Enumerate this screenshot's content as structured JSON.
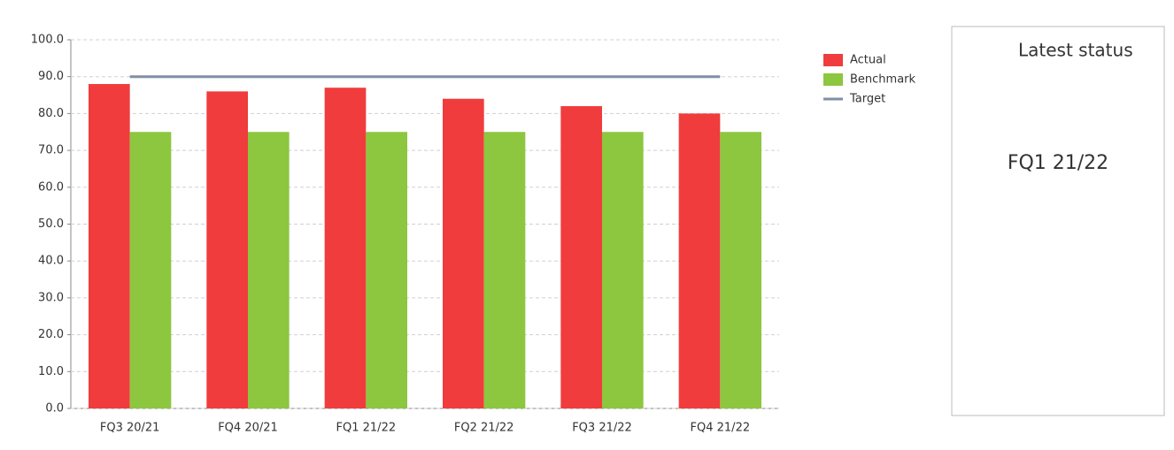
{
  "chart_data": {
    "type": "bar",
    "categories": [
      "FQ3 20/21",
      "FQ4 20/21",
      "FQ1 21/22",
      "FQ2 21/22",
      "FQ3 21/22",
      "FQ4 21/22"
    ],
    "series": [
      {
        "name": "Actual",
        "type": "bar",
        "color": "#f03c3c",
        "values": [
          88,
          86,
          87,
          84,
          82,
          80
        ]
      },
      {
        "name": "Benchmark",
        "type": "bar",
        "color": "#8dc63f",
        "values": [
          75,
          75,
          75,
          75,
          75,
          75
        ]
      },
      {
        "name": "Target",
        "type": "line",
        "color": "#7f8fa6",
        "values": [
          90,
          90,
          90,
          90,
          90,
          90
        ]
      }
    ],
    "ylim": [
      0,
      100
    ],
    "yticks": [
      {
        "value": 0,
        "label": "0.0"
      },
      {
        "value": 10,
        "label": "10.0"
      },
      {
        "value": 20,
        "label": "20.0"
      },
      {
        "value": 30,
        "label": "30.0"
      },
      {
        "value": 40,
        "label": "40.0"
      },
      {
        "value": 50,
        "label": "50.0"
      },
      {
        "value": 60,
        "label": "60.0"
      },
      {
        "value": 70,
        "label": "70.0"
      },
      {
        "value": 80,
        "label": "80.0"
      },
      {
        "value": 90,
        "label": "90.0"
      },
      {
        "value": 100,
        "label": "100.0"
      }
    ],
    "grid": true,
    "legend": "top-right",
    "status_title": "Latest status",
    "status_period": "FQ1 21/22"
  }
}
